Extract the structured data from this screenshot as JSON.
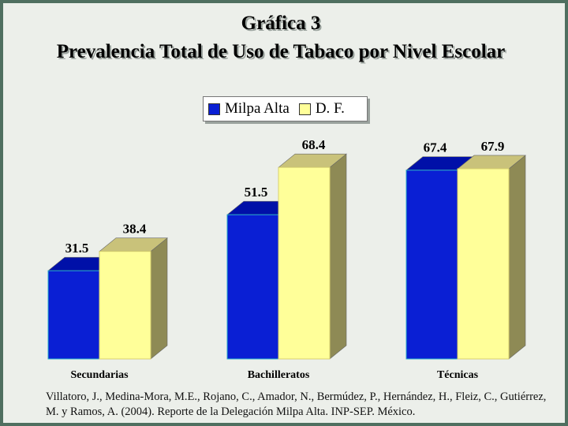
{
  "chart_data": {
    "type": "bar",
    "title": "Gráfica 3",
    "subtitle": "Prevalencia Total de Uso de Tabaco por Nivel Escolar",
    "categories": [
      "Secundarias",
      "Bachilleratos",
      "Técnicas"
    ],
    "series": [
      {
        "name": "Milpa Alta",
        "values": [
          31.5,
          51.5,
          67.4
        ],
        "color": "#0a1fd4"
      },
      {
        "name": "D. F.",
        "values": [
          38.4,
          68.4,
          67.9
        ],
        "color": "#ffff99"
      }
    ],
    "ylim": [
      0,
      100
    ],
    "bar_3d": true,
    "grid": false,
    "legend": "top-center",
    "data_labels": [
      "31.5",
      "38.4",
      "51.5",
      "68.4",
      "67.4",
      "67.9"
    ]
  },
  "source": "Villatoro, J., Medina-Mora, M.E., Rojano, C., Amador, N., Bermúdez, P., Hernández, H., Fleiz, C., Gutiérrez, M. y Ramos, A. (2004). Reporte de la Delegación Milpa Alta. INP-SEP. México."
}
